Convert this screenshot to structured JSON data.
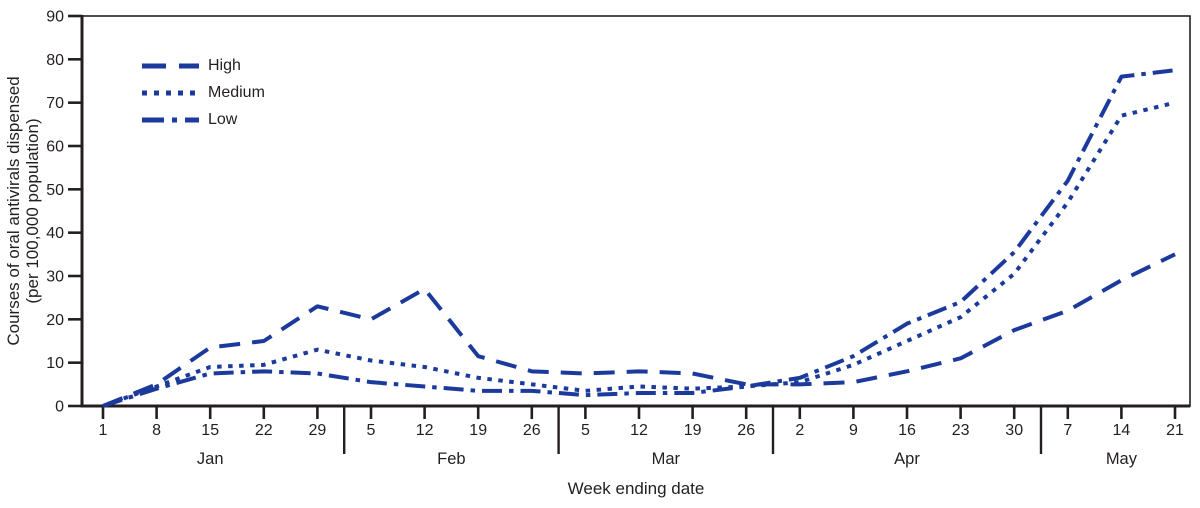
{
  "figure": {
    "background": "#ffffff",
    "line_color": "#1b3a9c",
    "axis_color": "#231f20"
  },
  "chart_data": {
    "type": "line",
    "title": "",
    "xlabel": "Week ending date",
    "ylabel_line1": "Courses of oral antivirals dispensed",
    "ylabel_line2": "(per 100,000 population)",
    "ylim": [
      0,
      90
    ],
    "ytick_step": 10,
    "grid": false,
    "legend_position": "top-left",
    "legend_entries": [
      "High",
      "Medium",
      "Low"
    ],
    "months": [
      {
        "label": "Jan",
        "ticks": [
          "1",
          "8",
          "15",
          "22",
          "29"
        ]
      },
      {
        "label": "Feb",
        "ticks": [
          "5",
          "12",
          "19",
          "26"
        ]
      },
      {
        "label": "Mar",
        "ticks": [
          "5",
          "12",
          "19",
          "26"
        ]
      },
      {
        "label": "Apr",
        "ticks": [
          "2",
          "9",
          "16",
          "23",
          "30"
        ]
      },
      {
        "label": "May",
        "ticks": [
          "7",
          "14",
          "21"
        ]
      }
    ],
    "series": [
      {
        "name": "High",
        "dash": "long-dash",
        "values": [
          0,
          5,
          13.5,
          15,
          23,
          20,
          27,
          11.5,
          8,
          7.5,
          8,
          7.5,
          5,
          5,
          5.5,
          8,
          11,
          17.5,
          22,
          29,
          35
        ]
      },
      {
        "name": "Medium",
        "dash": "dot",
        "values": [
          0,
          4.5,
          9,
          9.5,
          13,
          10.5,
          9,
          6.5,
          5,
          3.5,
          4.5,
          4,
          4.5,
          5.5,
          9.5,
          15,
          20.5,
          30.5,
          47,
          67,
          70
        ]
      },
      {
        "name": "Low",
        "dash": "dash-dot",
        "values": [
          0,
          4,
          7.5,
          8,
          7.5,
          5.5,
          4.5,
          3.5,
          3.5,
          2.5,
          3,
          3,
          4.5,
          6.5,
          11.5,
          19,
          24,
          35.5,
          52,
          76,
          77.5
        ]
      }
    ]
  }
}
